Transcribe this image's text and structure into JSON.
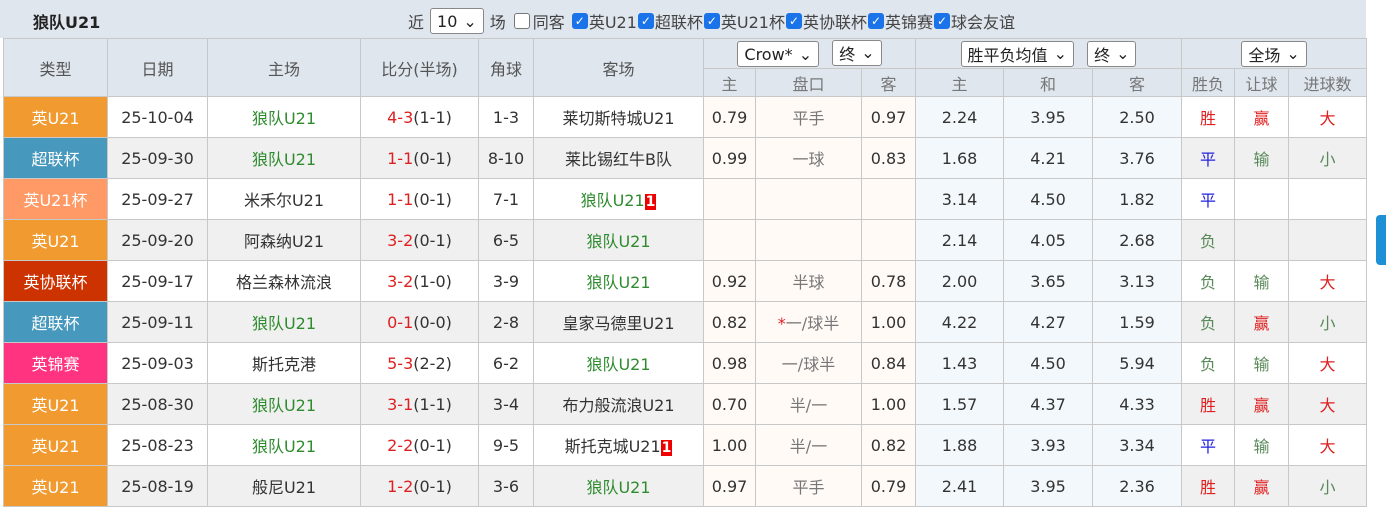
{
  "title": "狼队U21",
  "filters": {
    "recent_label": "近",
    "count": "10",
    "unit": "场",
    "same_label": "同客",
    "leagues": [
      "英U21",
      "超联杯",
      "英U21杯",
      "英协联杯",
      "英锦赛",
      "球会友谊"
    ]
  },
  "header": {
    "type": "类型",
    "date": "日期",
    "home": "主场",
    "score": "比分(半场)",
    "corner": "角球",
    "away": "客场",
    "company": "Crow*",
    "stage1": "终",
    "odds_type": "胜平负均值",
    "stage2": "终",
    "period": "全场",
    "sub": [
      "主",
      "盘口",
      "客",
      "主",
      "和",
      "客",
      "胜负",
      "让球",
      "进球数"
    ]
  },
  "type_colors": {
    "英U21": "#f09a30",
    "超联杯": "#4698bd",
    "英U21杯": "#ff9966",
    "英协联杯": "#cc3300",
    "英锦赛": "#ff3380"
  },
  "rows": [
    {
      "type": "英U21",
      "date": "25-10-04",
      "home": "狼队U21",
      "score": "4-3",
      "half": "(1-1)",
      "corner": "1-3",
      "away": "莱切斯特城U21",
      "badge": "",
      "h": "0.79",
      "pk": "平手",
      "a": "0.97",
      "w": "2.24",
      "d": "3.95",
      "l": "2.50",
      "res": "胜",
      "hc": "赢",
      "ou": "大",
      "team": "home"
    },
    {
      "type": "超联杯",
      "date": "25-09-30",
      "home": "狼队U21",
      "score": "1-1",
      "half": "(0-1)",
      "corner": "8-10",
      "away": "莱比锡红牛B队",
      "badge": "",
      "h": "0.99",
      "pk": "一球",
      "a": "0.83",
      "w": "1.68",
      "d": "4.21",
      "l": "3.76",
      "res": "平",
      "hc": "输",
      "ou": "小",
      "team": "home"
    },
    {
      "type": "英U21杯",
      "date": "25-09-27",
      "home": "米禾尔U21",
      "score": "1-1",
      "half": "(0-1)",
      "corner": "7-1",
      "away": "狼队U21",
      "badge": "1",
      "h": "",
      "pk": "",
      "a": "",
      "w": "3.14",
      "d": "4.50",
      "l": "1.82",
      "res": "平",
      "hc": "",
      "ou": "",
      "team": "away"
    },
    {
      "type": "英U21",
      "date": "25-09-20",
      "home": "阿森纳U21",
      "score": "3-2",
      "half": "(0-1)",
      "corner": "6-5",
      "away": "狼队U21",
      "badge": "",
      "h": "",
      "pk": "",
      "a": "",
      "w": "2.14",
      "d": "4.05",
      "l": "2.68",
      "res": "负",
      "hc": "",
      "ou": "",
      "team": "away"
    },
    {
      "type": "英协联杯",
      "date": "25-09-17",
      "home": "格兰森林流浪",
      "score": "3-2",
      "half": "(1-0)",
      "corner": "3-9",
      "away": "狼队U21",
      "badge": "",
      "h": "0.92",
      "pk": "半球",
      "a": "0.78",
      "w": "2.00",
      "d": "3.65",
      "l": "3.13",
      "res": "负",
      "hc": "输",
      "ou": "大",
      "team": "away"
    },
    {
      "type": "超联杯",
      "date": "25-09-11",
      "home": "狼队U21",
      "score": "0-1",
      "half": "(0-0)",
      "corner": "2-8",
      "away": "皇家马德里U21",
      "badge": "",
      "h": "0.82",
      "pk_star": "*",
      "pk": "一/球半",
      "a": "1.00",
      "w": "4.22",
      "d": "4.27",
      "l": "1.59",
      "res": "负",
      "hc": "赢",
      "ou": "小",
      "team": "home"
    },
    {
      "type": "英锦赛",
      "date": "25-09-03",
      "home": "斯托克港",
      "score": "5-3",
      "half": "(2-2)",
      "corner": "6-2",
      "away": "狼队U21",
      "badge": "",
      "h": "0.98",
      "pk": "一/球半",
      "a": "0.84",
      "w": "1.43",
      "d": "4.50",
      "l": "5.94",
      "res": "负",
      "hc": "输",
      "ou": "大",
      "team": "away"
    },
    {
      "type": "英U21",
      "date": "25-08-30",
      "home": "狼队U21",
      "score": "3-1",
      "half": "(1-1)",
      "corner": "3-4",
      "away": "布力般流浪U21",
      "badge": "",
      "h": "0.70",
      "pk": "半/一",
      "a": "1.00",
      "w": "1.57",
      "d": "4.37",
      "l": "4.33",
      "res": "胜",
      "hc": "赢",
      "ou": "大",
      "team": "home"
    },
    {
      "type": "英U21",
      "date": "25-08-23",
      "home": "狼队U21",
      "score": "2-2",
      "half": "(0-1)",
      "corner": "9-5",
      "away": "斯托克城U21",
      "badge": "1",
      "h": "1.00",
      "pk": "半/一",
      "a": "0.82",
      "w": "1.88",
      "d": "3.93",
      "l": "3.34",
      "res": "平",
      "hc": "输",
      "ou": "大",
      "team": "home"
    },
    {
      "type": "英U21",
      "date": "25-08-19",
      "home": "般尼U21",
      "score": "1-2",
      "half": "(0-1)",
      "corner": "3-6",
      "away": "狼队U21",
      "badge": "",
      "h": "0.97",
      "pk": "平手",
      "a": "0.79",
      "w": "2.41",
      "d": "3.95",
      "l": "2.36",
      "res": "胜",
      "hc": "赢",
      "ou": "小",
      "team": "away"
    }
  ]
}
